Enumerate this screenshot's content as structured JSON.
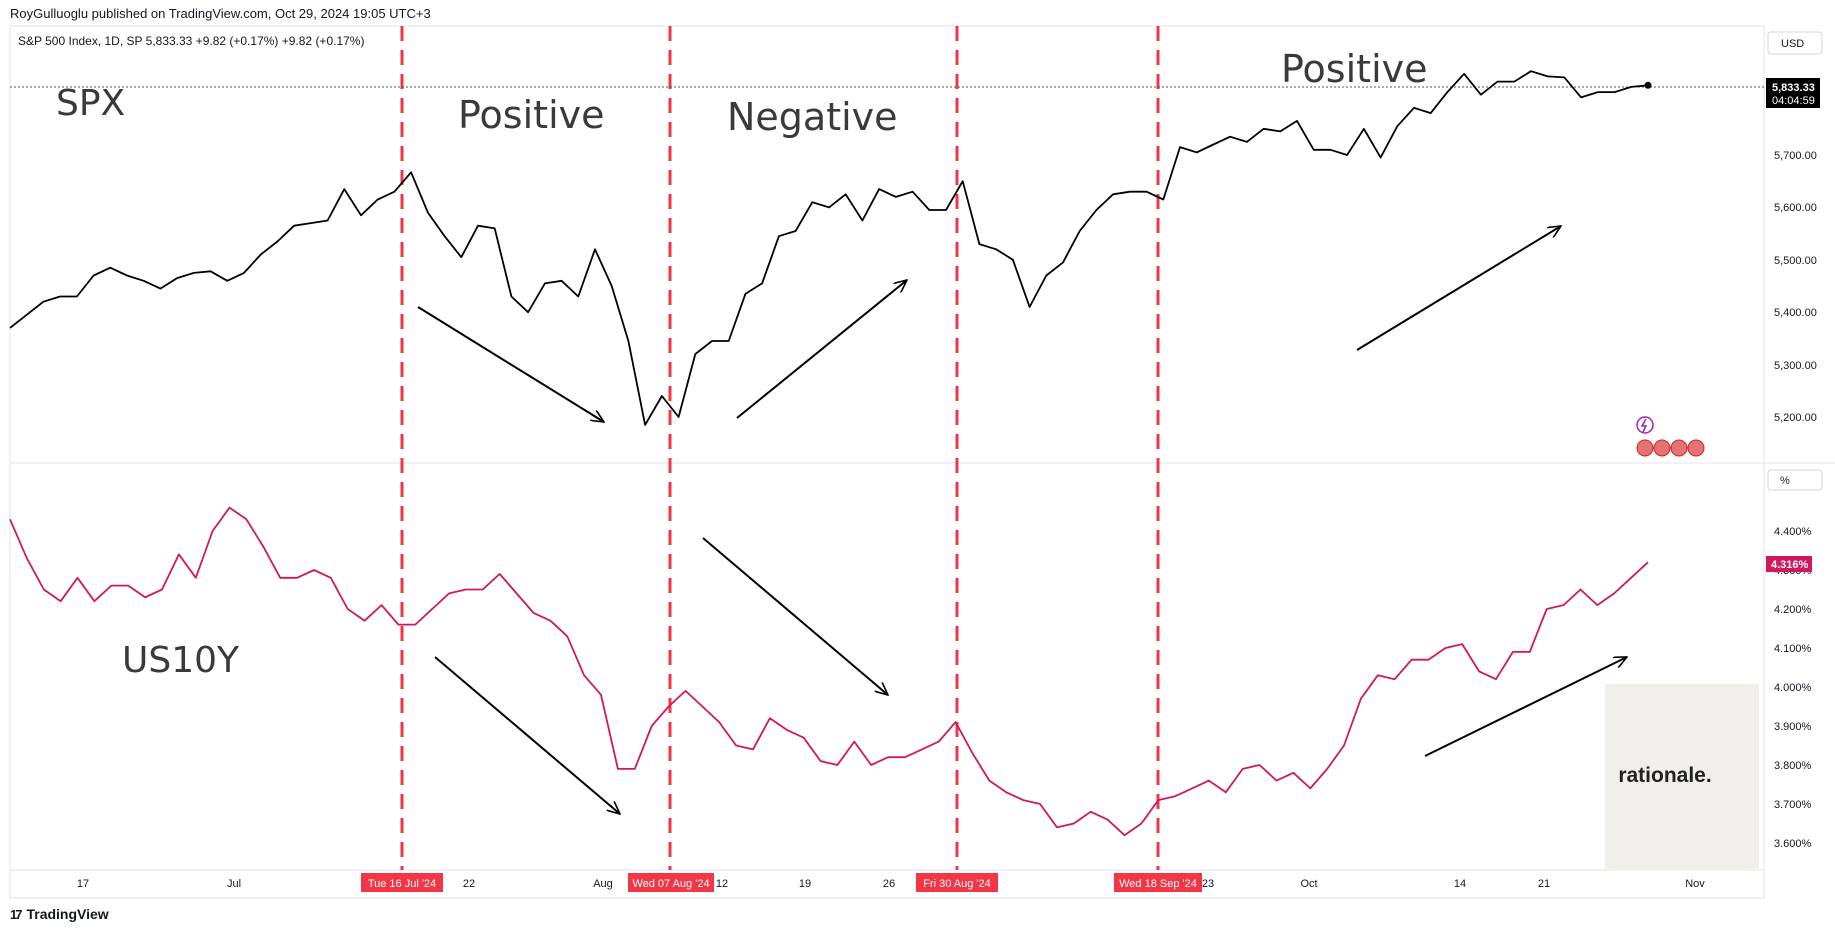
{
  "header": {
    "published": "RoyGulluoglu published on TradingView.com, Oct 29, 2024 19:05 UTC+3",
    "legend": "S&P 500 Index, 1D, SP  5,833.33  +9.82 (+0.17%)  +9.82 (+0.17%)"
  },
  "footer": {
    "brand": "TradingView",
    "logo": "17"
  },
  "annotations": {
    "spx": "SPX",
    "us10y": "US10Y",
    "phase1": "Positive",
    "phase2": "Negative",
    "phase3": "Positive",
    "watermark": "rationale."
  },
  "price_axis": {
    "top_unit": "USD",
    "bottom_unit": "%",
    "spx_last": "5,833.33",
    "spx_countdown": "04:04:59",
    "us10y_last": "4.316%",
    "spx_ticks": [
      "5,200.00",
      "5,300.00",
      "5,400.00",
      "5,500.00",
      "5,600.00",
      "5,700.00"
    ],
    "us10y_ticks": [
      "3.600%",
      "3.700%",
      "3.800%",
      "3.900%",
      "4.000%",
      "4.100%",
      "4.200%",
      "4.300%",
      "4.400%"
    ]
  },
  "time_axis": {
    "ticks": [
      "17",
      "Jul",
      "22",
      "Aug",
      "12",
      "19",
      "26",
      "23",
      "Oct",
      "14",
      "21",
      "Nov"
    ],
    "markers": [
      "Tue 16 Jul '24",
      "Wed 07 Aug '24",
      "Fri 30 Aug '24",
      "Wed 18 Sep '24"
    ]
  },
  "colors": {
    "spx_line": "#000000",
    "us10y_line": "#d0185f",
    "marker": "#f23645",
    "accent_bg": "#f0efe9"
  },
  "chart_data": [
    {
      "type": "line",
      "title": "S&P 500 Index, 1D, SP",
      "series": [
        {
          "name": "SPX",
          "values": [
            5370,
            5395,
            5420,
            5430,
            5430,
            5470,
            5485,
            5470,
            5460,
            5445,
            5465,
            5475,
            5478,
            5460,
            5475,
            5510,
            5535,
            5565,
            5570,
            5575,
            5635,
            5585,
            5615,
            5630,
            5667,
            5590,
            5545,
            5505,
            5565,
            5560,
            5430,
            5400,
            5455,
            5460,
            5430,
            5520,
            5450,
            5345,
            5185,
            5240,
            5200,
            5320,
            5345,
            5345,
            5435,
            5455,
            5545,
            5555,
            5610,
            5600,
            5625,
            5575,
            5635,
            5620,
            5630,
            5595,
            5595,
            5650,
            5530,
            5520,
            5500,
            5410,
            5470,
            5495,
            5555,
            5595,
            5625,
            5630,
            5630,
            5615,
            5715,
            5705,
            5720,
            5735,
            5725,
            5750,
            5745,
            5765,
            5710,
            5710,
            5700,
            5750,
            5695,
            5755,
            5790,
            5780,
            5820,
            5855,
            5815,
            5840,
            5840,
            5860,
            5850,
            5848,
            5810,
            5820,
            5820,
            5830,
            5833
          ]
        }
      ],
      "ylim": [
        5150,
        5900
      ]
    },
    {
      "type": "line",
      "title": "US10Y",
      "series": [
        {
          "name": "US10Y",
          "values": [
            4.43,
            4.33,
            4.25,
            4.22,
            4.28,
            4.22,
            4.26,
            4.26,
            4.23,
            4.25,
            4.34,
            4.28,
            4.4,
            4.46,
            4.43,
            4.36,
            4.28,
            4.28,
            4.3,
            4.28,
            4.2,
            4.17,
            4.21,
            4.16,
            4.16,
            4.2,
            4.24,
            4.25,
            4.25,
            4.29,
            4.24,
            4.19,
            4.17,
            4.13,
            4.03,
            3.98,
            3.79,
            3.79,
            3.9,
            3.95,
            3.99,
            3.95,
            3.91,
            3.85,
            3.84,
            3.92,
            3.89,
            3.87,
            3.81,
            3.8,
            3.86,
            3.8,
            3.82,
            3.82,
            3.84,
            3.86,
            3.91,
            3.83,
            3.76,
            3.73,
            3.71,
            3.7,
            3.64,
            3.65,
            3.68,
            3.66,
            3.62,
            3.65,
            3.71,
            3.72,
            3.74,
            3.76,
            3.73,
            3.79,
            3.8,
            3.76,
            3.78,
            3.74,
            3.79,
            3.85,
            3.97,
            4.03,
            4.02,
            4.07,
            4.07,
            4.1,
            4.11,
            4.04,
            4.02,
            4.09,
            4.09,
            4.2,
            4.21,
            4.25,
            4.21,
            4.24,
            4.28,
            4.32
          ]
        }
      ],
      "ylim": [
        3.55,
        4.55
      ]
    }
  ]
}
